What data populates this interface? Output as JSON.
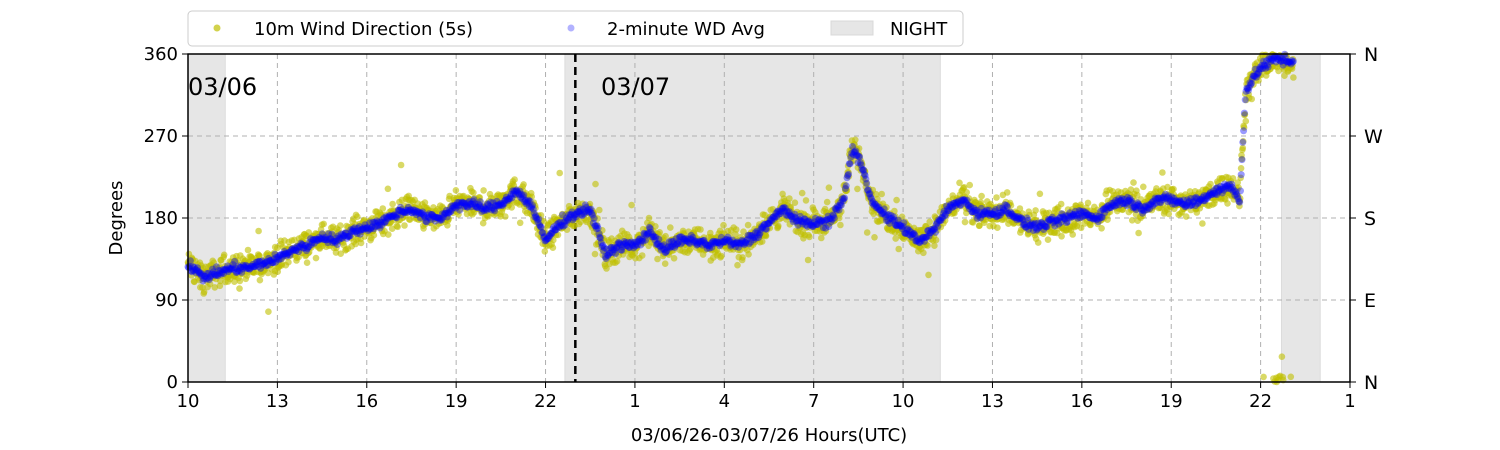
{
  "chart_data": {
    "type": "scatter",
    "title": "",
    "xlabel": "03/06/26-03/07/26  Hours(UTC)",
    "ylabel": "Degrees",
    "xlim_hours": [
      10,
      49
    ],
    "ylim": [
      0,
      360
    ],
    "x_ticks": [
      {
        "hour": 10,
        "label": "10"
      },
      {
        "hour": 13,
        "label": "13"
      },
      {
        "hour": 16,
        "label": "16"
      },
      {
        "hour": 19,
        "label": "19"
      },
      {
        "hour": 22,
        "label": "22"
      },
      {
        "hour": 25,
        "label": "1"
      },
      {
        "hour": 28,
        "label": "4"
      },
      {
        "hour": 31,
        "label": "7"
      },
      {
        "hour": 34,
        "label": "10"
      },
      {
        "hour": 37,
        "label": "13"
      },
      {
        "hour": 40,
        "label": "16"
      },
      {
        "hour": 43,
        "label": "19"
      },
      {
        "hour": 46,
        "label": "22"
      },
      {
        "hour": 49,
        "label": "1"
      }
    ],
    "y_ticks": [
      {
        "value": 0,
        "label": "0"
      },
      {
        "value": 90,
        "label": "90"
      },
      {
        "value": 180,
        "label": "180"
      },
      {
        "value": 270,
        "label": "270"
      },
      {
        "value": 360,
        "label": "360"
      }
    ],
    "y_ticks_right": [
      {
        "value": 0,
        "label": "N"
      },
      {
        "value": 90,
        "label": "E"
      },
      {
        "value": 180,
        "label": "S"
      },
      {
        "value": 270,
        "label": "W"
      },
      {
        "value": 360,
        "label": "N"
      }
    ],
    "grid": true,
    "legend": {
      "placement": "top",
      "entries": [
        {
          "label": "10m Wind Direction (5s)",
          "color": "#bfbf00"
        },
        {
          "label": "2-minute WD Avg",
          "color": "#0000ff"
        },
        {
          "label": "NIGHT",
          "color": "#e6e6e6"
        }
      ]
    },
    "night_periods_hours": [
      [
        10,
        11.25
      ],
      [
        22.65,
        35.25
      ],
      [
        46.7,
        48.0
      ]
    ],
    "date_divider_hour": 23,
    "date_labels": [
      {
        "hour": 10,
        "label": "03/06"
      },
      {
        "hour": 24,
        "label": "03/07"
      }
    ],
    "series": [
      {
        "name": "2-minute WD Avg",
        "hours": [
          10,
          10.5,
          11,
          11.5,
          12,
          12.5,
          13,
          13.5,
          14,
          14.5,
          15,
          15.5,
          16,
          16.5,
          17,
          17.5,
          18,
          18.5,
          19,
          19.5,
          20,
          20.5,
          21,
          21.5,
          22,
          22.5,
          23,
          23.5,
          24,
          24.5,
          25,
          25.5,
          26,
          26.5,
          27,
          27.5,
          28,
          28.5,
          29,
          29.5,
          30,
          30.5,
          31,
          31.5,
          32,
          32.3,
          32.6,
          33,
          33.5,
          34,
          34.5,
          35,
          35.5,
          36,
          36.5,
          37,
          37.5,
          38,
          38.5,
          39,
          39.5,
          40,
          40.5,
          41,
          41.5,
          42,
          42.5,
          43,
          43.5,
          44,
          44.5,
          45,
          45.3,
          45.5,
          46,
          46.5,
          47,
          47.1
        ],
        "degrees": [
          130,
          115,
          120,
          125,
          125,
          130,
          135,
          145,
          150,
          160,
          155,
          165,
          170,
          175,
          185,
          190,
          180,
          180,
          195,
          195,
          190,
          195,
          210,
          195,
          155,
          175,
          185,
          190,
          140,
          150,
          150,
          165,
          145,
          155,
          155,
          150,
          155,
          150,
          160,
          175,
          190,
          175,
          175,
          175,
          200,
          255,
          240,
          195,
          180,
          170,
          155,
          165,
          190,
          200,
          185,
          185,
          190,
          175,
          170,
          175,
          180,
          185,
          180,
          195,
          200,
          190,
          200,
          200,
          195,
          200,
          210,
          215,
          200,
          320,
          345,
          355,
          352,
          350
        ]
      },
      {
        "name": "10m Wind Direction (5s)",
        "note_spread_deg": 22
      }
    ]
  }
}
